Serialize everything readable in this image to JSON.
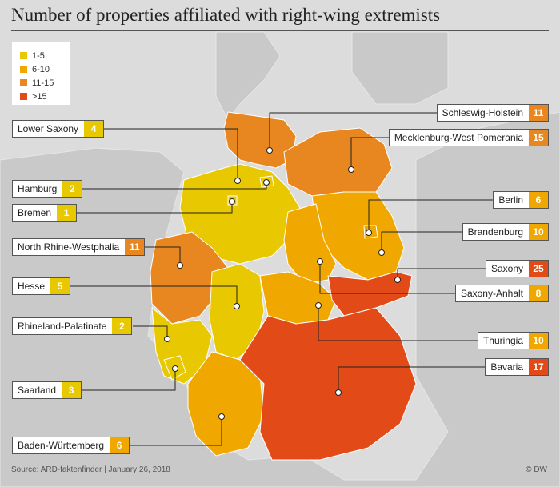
{
  "title": "Number of properties affiliated with right-wing extremists",
  "legend": [
    {
      "label": "1-5",
      "color": "#e8c800"
    },
    {
      "label": "6-10",
      "color": "#f0a800"
    },
    {
      "label": "11-15",
      "color": "#e8861f"
    },
    {
      "label": ">15",
      "color": "#e24a17"
    }
  ],
  "states": [
    {
      "name": "Lower Saxony",
      "value": "4",
      "bin": 0
    },
    {
      "name": "Hamburg",
      "value": "2",
      "bin": 0
    },
    {
      "name": "Bremen",
      "value": "1",
      "bin": 0
    },
    {
      "name": "North Rhine-Westphalia",
      "value": "11",
      "bin": 2
    },
    {
      "name": "Hesse",
      "value": "5",
      "bin": 0
    },
    {
      "name": "Rhineland-Palatinate",
      "value": "2",
      "bin": 0
    },
    {
      "name": "Saarland",
      "value": "3",
      "bin": 0
    },
    {
      "name": "Baden-Württemberg",
      "value": "6",
      "bin": 1
    },
    {
      "name": "Schleswig-Holstein",
      "value": "11",
      "bin": 2
    },
    {
      "name": "Mecklenburg-West Pomerania",
      "value": "15",
      "bin": 2
    },
    {
      "name": "Berlin",
      "value": "6",
      "bin": 1
    },
    {
      "name": "Brandenburg",
      "value": "10",
      "bin": 1
    },
    {
      "name": "Saxony",
      "value": "25",
      "bin": 3
    },
    {
      "name": "Saxony-Anhalt",
      "value": "8",
      "bin": 1
    },
    {
      "name": "Thuringia",
      "value": "10",
      "bin": 1
    },
    {
      "name": "Bavaria",
      "value": "17",
      "bin": 3
    }
  ],
  "source": "Source: ARD-faktenfinder | January 26, 2018",
  "credit": "© DW"
}
